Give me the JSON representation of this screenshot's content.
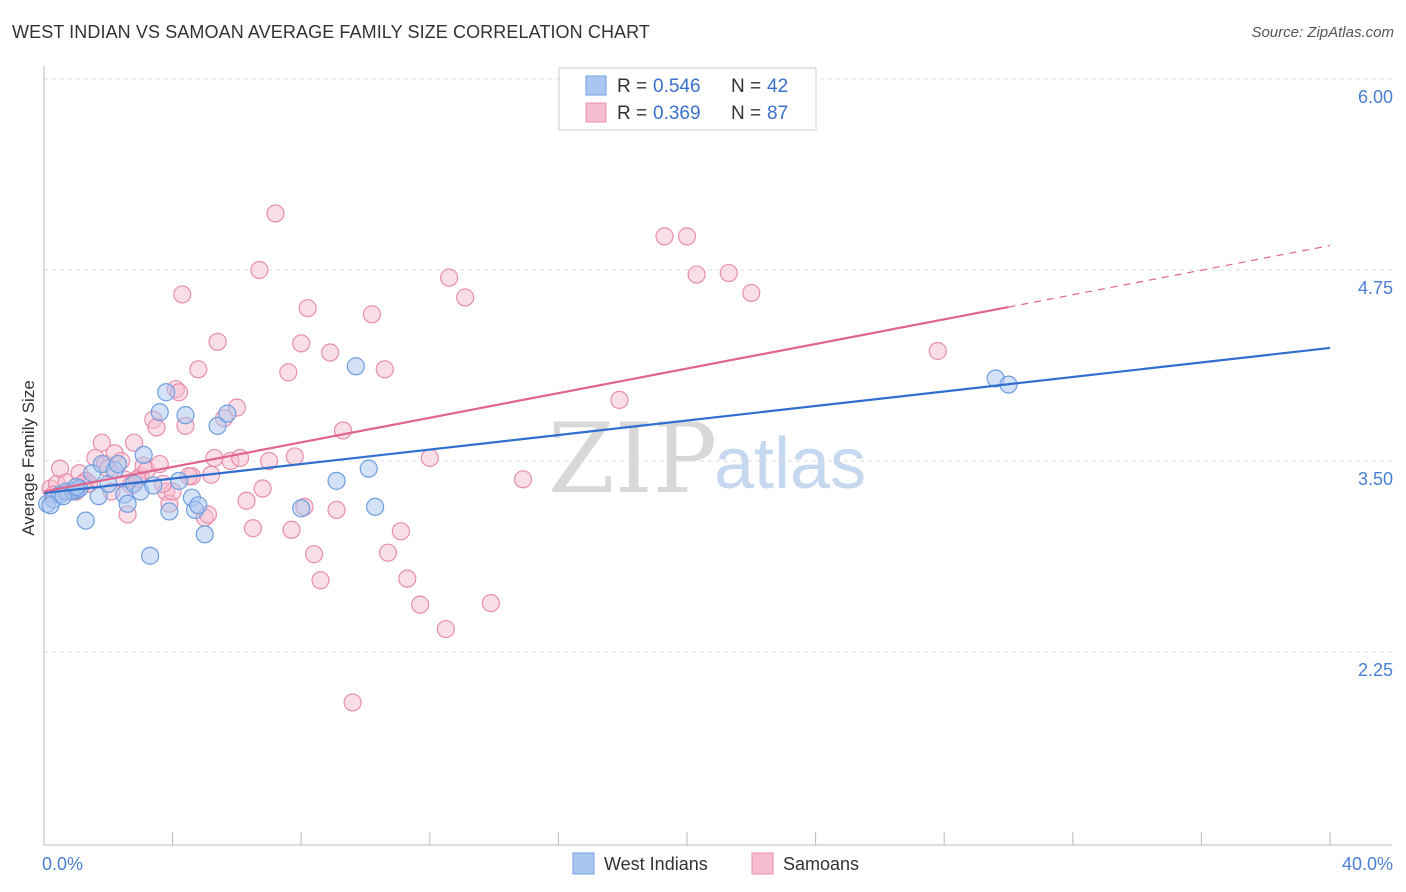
{
  "title": "WEST INDIAN VS SAMOAN AVERAGE FAMILY SIZE CORRELATION CHART",
  "source": "Source: ZipAtlas.com",
  "watermark": {
    "zip": "ZIP",
    "atlas": "atlas"
  },
  "colors": {
    "blue_fill": "#a9c6f0",
    "blue_stroke": "#6f9ee0",
    "blue_line": "#2f6fd0",
    "pink_fill": "#f6bdd0",
    "pink_stroke": "#e88eac",
    "pink_line": "#e0648e",
    "grid": "#dddddd",
    "axis": "#bbbbbb",
    "tick_text": "#4a7fd4"
  },
  "legend": {
    "rows": [
      {
        "r_label": "R = ",
        "r_value": "0.546",
        "n_label": "N = ",
        "n_value": "42"
      },
      {
        "r_label": "R = ",
        "r_value": "0.369",
        "n_label": "N = ",
        "n_value": "87"
      }
    ]
  },
  "chart_data": {
    "type": "scatter",
    "title": "WEST INDIAN VS SAMOAN AVERAGE FAMILY SIZE CORRELATION CHART",
    "xlabel": "",
    "ylabel": "Average Family Size",
    "xlim": [
      0,
      40
    ],
    "ylim": [
      1.0,
      6.1
    ],
    "x_tick_labels": [
      {
        "value": 0,
        "label": "0.0%"
      },
      {
        "value": 40,
        "label": "40.0%"
      }
    ],
    "y_ticks": [
      {
        "value": 2.25,
        "label": "2.25"
      },
      {
        "value": 3.5,
        "label": "3.50"
      },
      {
        "value": 4.75,
        "label": "4.75"
      },
      {
        "value": 6.0,
        "label": "6.00"
      }
    ],
    "x_minor_ticks": [
      4,
      8,
      12,
      16,
      20,
      24,
      28,
      32,
      36,
      40
    ],
    "series": [
      {
        "name": "West Indians",
        "r": 0.546,
        "n": 42,
        "trend": {
          "x0": 0.0,
          "y0": 3.29,
          "x1": 40.0,
          "y1": 4.24,
          "dash_from": null
        },
        "points": [
          [
            0.1,
            3.22
          ],
          [
            0.3,
            3.25
          ],
          [
            0.5,
            3.28
          ],
          [
            0.7,
            3.3
          ],
          [
            0.9,
            3.3
          ],
          [
            1.0,
            3.31
          ],
          [
            1.1,
            3.32
          ],
          [
            1.3,
            3.11
          ],
          [
            1.5,
            3.42
          ],
          [
            1.7,
            3.27
          ],
          [
            1.8,
            3.48
          ],
          [
            2.0,
            3.35
          ],
          [
            2.2,
            3.44
          ],
          [
            2.3,
            3.48
          ],
          [
            2.5,
            3.28
          ],
          [
            2.6,
            3.22
          ],
          [
            2.8,
            3.35
          ],
          [
            3.0,
            3.3
          ],
          [
            3.1,
            3.54
          ],
          [
            3.3,
            2.88
          ],
          [
            3.4,
            3.34
          ],
          [
            3.6,
            3.82
          ],
          [
            3.8,
            3.95
          ],
          [
            3.9,
            3.17
          ],
          [
            4.2,
            3.37
          ],
          [
            4.4,
            3.8
          ],
          [
            4.6,
            3.26
          ],
          [
            4.7,
            3.18
          ],
          [
            4.8,
            3.21
          ],
          [
            5.0,
            3.02
          ],
          [
            5.4,
            3.73
          ],
          [
            5.7,
            3.81
          ],
          [
            8.0,
            3.19
          ],
          [
            9.1,
            3.37
          ],
          [
            9.7,
            4.12
          ],
          [
            10.1,
            3.45
          ],
          [
            10.3,
            3.2
          ],
          [
            0.2,
            3.21
          ],
          [
            0.6,
            3.27
          ],
          [
            1.0,
            3.33
          ],
          [
            29.6,
            4.04
          ],
          [
            30.0,
            4.0
          ]
        ]
      },
      {
        "name": "Samoans",
        "r": 0.369,
        "n": 87,
        "trend": {
          "x0": 0.0,
          "y0": 3.3,
          "x1": 40.0,
          "y1": 4.91,
          "dash_from": 30.0
        },
        "points": [
          [
            0.2,
            3.32
          ],
          [
            0.4,
            3.35
          ],
          [
            0.5,
            3.45
          ],
          [
            0.7,
            3.36
          ],
          [
            0.8,
            3.3
          ],
          [
            1.0,
            3.3
          ],
          [
            1.1,
            3.42
          ],
          [
            1.3,
            3.37
          ],
          [
            1.4,
            3.35
          ],
          [
            1.6,
            3.52
          ],
          [
            1.8,
            3.62
          ],
          [
            1.9,
            3.48
          ],
          [
            2.1,
            3.3
          ],
          [
            2.2,
            3.55
          ],
          [
            2.4,
            3.5
          ],
          [
            2.5,
            3.38
          ],
          [
            2.6,
            3.15
          ],
          [
            2.7,
            3.34
          ],
          [
            2.8,
            3.62
          ],
          [
            3.0,
            3.4
          ],
          [
            3.1,
            3.47
          ],
          [
            3.2,
            3.44
          ],
          [
            3.4,
            3.77
          ],
          [
            3.5,
            3.72
          ],
          [
            3.6,
            3.48
          ],
          [
            3.8,
            3.3
          ],
          [
            3.9,
            3.22
          ],
          [
            4.0,
            3.3
          ],
          [
            4.1,
            3.97
          ],
          [
            4.2,
            3.95
          ],
          [
            4.3,
            4.59
          ],
          [
            4.4,
            3.73
          ],
          [
            4.6,
            3.4
          ],
          [
            4.8,
            4.1
          ],
          [
            5.0,
            3.13
          ],
          [
            5.1,
            3.15
          ],
          [
            5.2,
            3.41
          ],
          [
            5.3,
            3.52
          ],
          [
            5.4,
            4.28
          ],
          [
            5.6,
            3.78
          ],
          [
            5.8,
            3.5
          ],
          [
            6.0,
            3.85
          ],
          [
            6.1,
            3.52
          ],
          [
            6.3,
            3.24
          ],
          [
            6.5,
            3.06
          ],
          [
            6.7,
            4.75
          ],
          [
            6.8,
            3.32
          ],
          [
            7.0,
            3.5
          ],
          [
            7.2,
            5.12
          ],
          [
            7.6,
            4.08
          ],
          [
            7.7,
            3.05
          ],
          [
            7.8,
            3.53
          ],
          [
            8.0,
            4.27
          ],
          [
            8.1,
            3.2
          ],
          [
            8.2,
            4.5
          ],
          [
            8.4,
            2.89
          ],
          [
            8.6,
            2.72
          ],
          [
            8.9,
            4.21
          ],
          [
            9.1,
            3.18
          ],
          [
            9.3,
            3.7
          ],
          [
            9.6,
            1.92
          ],
          [
            10.2,
            4.46
          ],
          [
            10.6,
            4.1
          ],
          [
            10.7,
            2.9
          ],
          [
            11.1,
            3.04
          ],
          [
            11.3,
            2.73
          ],
          [
            11.7,
            2.56
          ],
          [
            12.0,
            3.52
          ],
          [
            12.5,
            2.4
          ],
          [
            12.6,
            4.7
          ],
          [
            13.1,
            4.57
          ],
          [
            13.9,
            2.57
          ],
          [
            14.9,
            3.38
          ],
          [
            17.9,
            3.9
          ],
          [
            19.3,
            4.97
          ],
          [
            20.0,
            4.97
          ],
          [
            20.3,
            4.72
          ],
          [
            21.3,
            4.73
          ],
          [
            22.0,
            4.6
          ],
          [
            27.8,
            4.22
          ],
          [
            0.3,
            3.28
          ],
          [
            0.9,
            3.3
          ],
          [
            1.2,
            3.35
          ],
          [
            2.0,
            3.45
          ],
          [
            2.9,
            3.38
          ],
          [
            3.7,
            3.35
          ],
          [
            4.5,
            3.4
          ]
        ]
      }
    ]
  },
  "bottom_legend": {
    "items": [
      {
        "label": "West Indians"
      },
      {
        "label": "Samoans"
      }
    ]
  }
}
